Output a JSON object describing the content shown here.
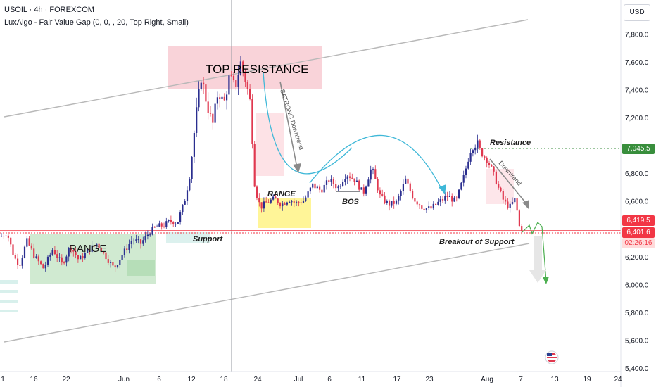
{
  "header": {
    "symbol_line": "USOIL · 4h · FOREXCOM",
    "indicator_line": "LuxAlgo - Fair Value Gap (0, 0, , 20, Top Right, Small)"
  },
  "currency_button": "USD",
  "price_tags": {
    "resistance": "7,045.5",
    "upper": "6,419.5",
    "current": "6,401.6",
    "countdown": "02:26:16"
  },
  "colors": {
    "bull": "#2a2e8f",
    "bear": "#e0384f",
    "support_line": "#f23645",
    "resistance_tag": "#388e3c",
    "range_green": "#c8e6c9",
    "range_yellow": "#fff176",
    "top_res_zone": "#f8c8d0",
    "curve": "#3fb8d8",
    "channel": "#b8b8b8"
  },
  "annotations": {
    "top_resistance": "TOP RESISTANCE",
    "range_left": "RANGE",
    "range_mid": "RANGE",
    "support": "Support",
    "bos": "BOS",
    "resistance": "Resistance",
    "breakout": "Breakout of Support",
    "strong_downtrend": "SATRONG Downtrend",
    "downtrend": "Downtrend"
  },
  "chart_data": {
    "type": "candlestick",
    "timeframe": "4h",
    "y_axis_ticks": [
      "7,800.0",
      "7,600.0",
      "7,400.0",
      "7,200.0",
      "6,800.0",
      "6,600.0",
      "6,200.0",
      "6,000.0",
      "5,800.0",
      "5,600.0",
      "5,400.0"
    ],
    "x_axis_ticks": [
      "1",
      "16",
      "22",
      "Jun",
      "6",
      "12",
      "18",
      "24",
      "Jul",
      "6",
      "11",
      "17",
      "23",
      "Aug",
      "7",
      "13",
      "19",
      "24"
    ],
    "ylim": [
      5380,
      8050
    ],
    "key_levels": {
      "resistance": 7045.5,
      "support": 6419.5,
      "last": 6401.6
    },
    "price_path": [
      [
        0,
        6350
      ],
      [
        10,
        6380
      ],
      [
        20,
        6200
      ],
      [
        28,
        6150
      ],
      [
        38,
        6320
      ],
      [
        50,
        6200
      ],
      [
        62,
        6120
      ],
      [
        75,
        6260
      ],
      [
        88,
        6150
      ],
      [
        100,
        6280
      ],
      [
        112,
        6180
      ],
      [
        125,
        6250
      ],
      [
        138,
        6300
      ],
      [
        150,
        6210
      ],
      [
        162,
        6120
      ],
      [
        175,
        6230
      ],
      [
        188,
        6330
      ],
      [
        200,
        6300
      ],
      [
        212,
        6380
      ],
      [
        222,
        6420
      ],
      [
        232,
        6430
      ],
      [
        242,
        6460
      ],
      [
        252,
        6450
      ],
      [
        262,
        6600
      ],
      [
        270,
        6800
      ],
      [
        278,
        7200
      ],
      [
        286,
        7500
      ],
      [
        294,
        7300
      ],
      [
        302,
        7150
      ],
      [
        310,
        7400
      ],
      [
        318,
        7300
      ],
      [
        326,
        7500
      ],
      [
        334,
        7420
      ],
      [
        342,
        7600
      ],
      [
        350,
        7450
      ],
      [
        356,
        7300
      ],
      [
        362,
        6700
      ],
      [
        370,
        6560
      ],
      [
        380,
        6600
      ],
      [
        390,
        6620
      ],
      [
        400,
        6580
      ],
      [
        410,
        6620
      ],
      [
        420,
        6590
      ],
      [
        432,
        6610
      ],
      [
        444,
        6720
      ],
      [
        456,
        6680
      ],
      [
        468,
        6760
      ],
      [
        480,
        6700
      ],
      [
        492,
        6800
      ],
      [
        504,
        6760
      ],
      [
        516,
        6660
      ],
      [
        528,
        6850
      ],
      [
        540,
        6640
      ],
      [
        552,
        6580
      ],
      [
        564,
        6600
      ],
      [
        576,
        6760
      ],
      [
        588,
        6620
      ],
      [
        600,
        6560
      ],
      [
        612,
        6550
      ],
      [
        624,
        6600
      ],
      [
        636,
        6640
      ],
      [
        648,
        6600
      ],
      [
        660,
        6800
      ],
      [
        668,
        6960
      ],
      [
        676,
        7030
      ],
      [
        684,
        6950
      ],
      [
        692,
        6900
      ],
      [
        700,
        6820
      ],
      [
        708,
        6700
      ],
      [
        716,
        6600
      ],
      [
        724,
        6560
      ],
      [
        732,
        6620
      ],
      [
        738,
        6420
      ],
      [
        742,
        6400
      ]
    ]
  }
}
